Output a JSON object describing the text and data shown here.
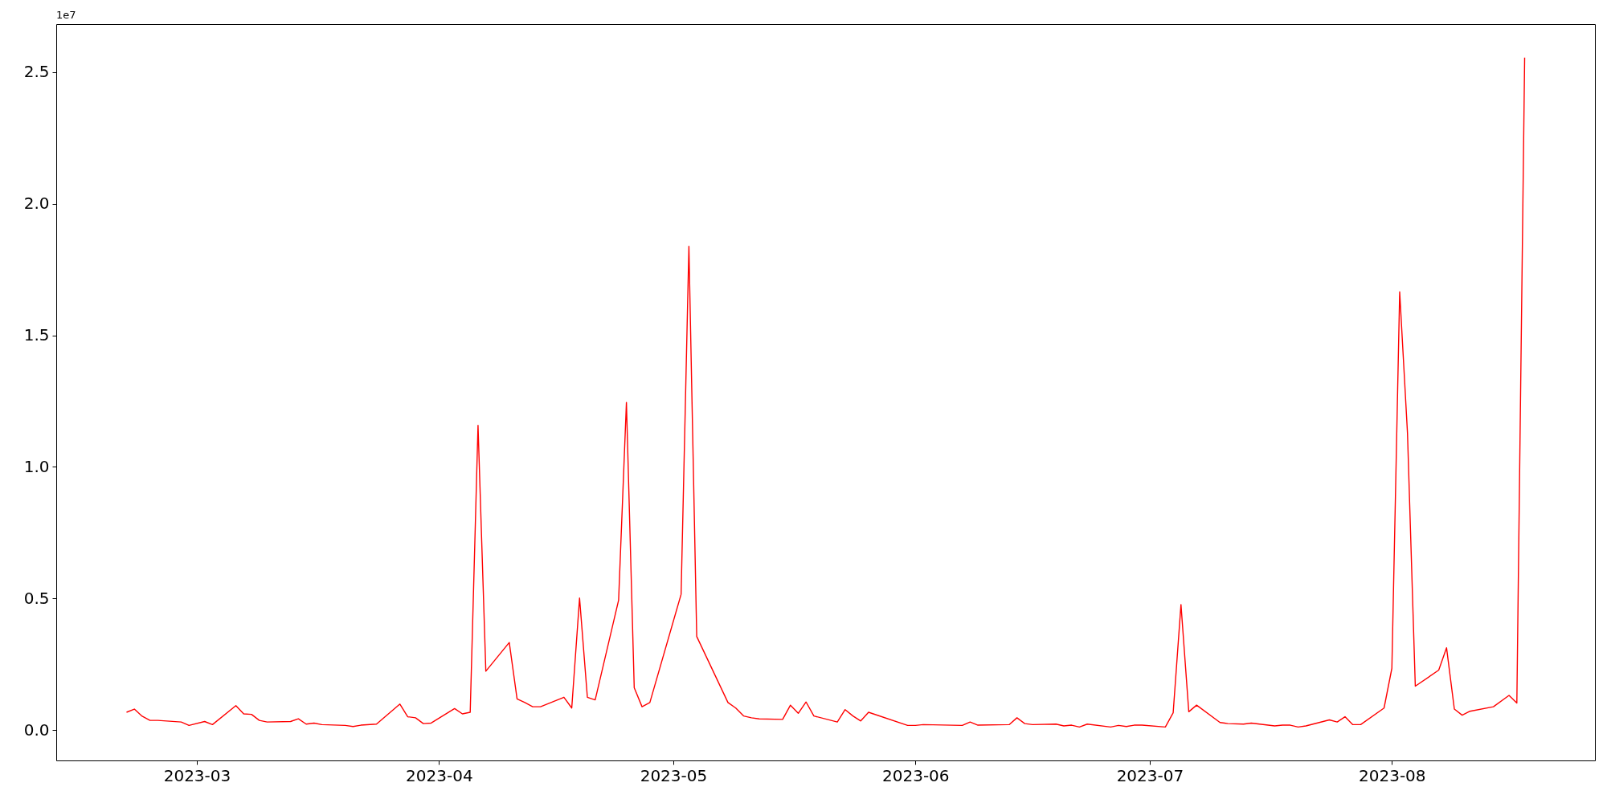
{
  "chart_data": {
    "type": "line",
    "x": [
      "2023-02-20",
      "2023-02-21",
      "2023-02-22",
      "2023-02-23",
      "2023-02-24",
      "2023-02-27",
      "2023-02-28",
      "2023-03-02",
      "2023-03-03",
      "2023-03-06",
      "2023-03-07",
      "2023-03-08",
      "2023-03-09",
      "2023-03-10",
      "2023-03-13",
      "2023-03-14",
      "2023-03-15",
      "2023-03-16",
      "2023-03-17",
      "2023-03-20",
      "2023-03-21",
      "2023-03-22",
      "2023-03-24",
      "2023-03-27",
      "2023-03-28",
      "2023-03-29",
      "2023-03-30",
      "2023-03-31",
      "2023-04-03",
      "2023-04-04",
      "2023-04-05",
      "2023-04-06",
      "2023-04-07",
      "2023-04-10",
      "2023-04-11",
      "2023-04-12",
      "2023-04-13",
      "2023-04-14",
      "2023-04-17",
      "2023-04-18",
      "2023-04-19",
      "2023-04-20",
      "2023-04-21",
      "2023-04-24",
      "2023-04-25",
      "2023-04-26",
      "2023-04-27",
      "2023-04-28",
      "2023-05-02",
      "2023-05-03",
      "2023-05-04",
      "2023-05-08",
      "2023-05-09",
      "2023-05-10",
      "2023-05-11",
      "2023-05-12",
      "2023-05-15",
      "2023-05-16",
      "2023-05-17",
      "2023-05-18",
      "2023-05-19",
      "2023-05-22",
      "2023-05-23",
      "2023-05-24",
      "2023-05-25",
      "2023-05-26",
      "2023-05-31",
      "2023-06-01",
      "2023-06-02",
      "2023-06-07",
      "2023-06-08",
      "2023-06-09",
      "2023-06-13",
      "2023-06-14",
      "2023-06-15",
      "2023-06-16",
      "2023-06-19",
      "2023-06-20",
      "2023-06-21",
      "2023-06-22",
      "2023-06-23",
      "2023-06-26",
      "2023-06-27",
      "2023-06-28",
      "2023-06-29",
      "2023-06-30",
      "2023-07-03",
      "2023-07-04",
      "2023-07-05",
      "2023-07-06",
      "2023-07-07",
      "2023-07-10",
      "2023-07-11",
      "2023-07-13",
      "2023-07-14",
      "2023-07-17",
      "2023-07-18",
      "2023-07-19",
      "2023-07-20",
      "2023-07-21",
      "2023-07-24",
      "2023-07-25",
      "2023-07-26",
      "2023-07-27",
      "2023-07-28",
      "2023-07-31",
      "2023-08-01",
      "2023-08-02",
      "2023-08-03",
      "2023-08-04",
      "2023-08-07",
      "2023-08-08",
      "2023-08-09",
      "2023-08-10",
      "2023-08-11",
      "2023-08-14",
      "2023-08-16",
      "2023-08-17",
      "2023-08-18"
    ],
    "series": [
      {
        "color": "#ff0000",
        "values": [
          0.068,
          0.08,
          0.053,
          0.037,
          0.037,
          0.031,
          0.018,
          0.033,
          0.021,
          0.093,
          0.062,
          0.06,
          0.037,
          0.031,
          0.033,
          0.043,
          0.023,
          0.027,
          0.021,
          0.018,
          0.014,
          0.019,
          0.023,
          0.099,
          0.051,
          0.047,
          0.025,
          0.027,
          0.082,
          0.062,
          0.068,
          1.158,
          0.224,
          0.333,
          0.119,
          0.105,
          0.089,
          0.089,
          0.125,
          0.084,
          0.502,
          0.125,
          0.115,
          0.494,
          1.245,
          0.161,
          0.089,
          0.105,
          0.516,
          1.838,
          0.356,
          0.105,
          0.084,
          0.054,
          0.047,
          0.043,
          0.041,
          0.095,
          0.064,
          0.107,
          0.054,
          0.031,
          0.078,
          0.054,
          0.035,
          0.068,
          0.018,
          0.018,
          0.021,
          0.018,
          0.031,
          0.019,
          0.021,
          0.047,
          0.025,
          0.021,
          0.023,
          0.016,
          0.019,
          0.012,
          0.023,
          0.012,
          0.018,
          0.014,
          0.019,
          0.019,
          0.012,
          0.066,
          0.477,
          0.07,
          0.095,
          0.029,
          0.025,
          0.023,
          0.027,
          0.016,
          0.019,
          0.019,
          0.012,
          0.016,
          0.039,
          0.031,
          0.051,
          0.021,
          0.021,
          0.084,
          0.235,
          1.665,
          1.128,
          0.167,
          0.228,
          0.313,
          0.08,
          0.057,
          0.072,
          0.089,
          0.132,
          0.103,
          2.555
        ]
      }
    ],
    "xlim": [
      "2023-02-11",
      "2023-08-27"
    ],
    "xticks": [
      {
        "value": "2023-03-01",
        "label": "2023-03"
      },
      {
        "value": "2023-04-01",
        "label": "2023-04"
      },
      {
        "value": "2023-05-01",
        "label": "2023-05"
      },
      {
        "value": "2023-06-01",
        "label": "2023-06"
      },
      {
        "value": "2023-07-01",
        "label": "2023-07"
      },
      {
        "value": "2023-08-01",
        "label": "2023-08"
      }
    ],
    "ylim": [
      -0.115,
      2.682
    ],
    "yticks": [
      {
        "value": 0,
        "label": "0.0"
      },
      0.5,
      {
        "value": 1,
        "label": "1.0"
      },
      1.5,
      {
        "value": 2,
        "label": "2.0"
      },
      2.5
    ],
    "annotations": [
      "1e7"
    ],
    "grid": false
  }
}
